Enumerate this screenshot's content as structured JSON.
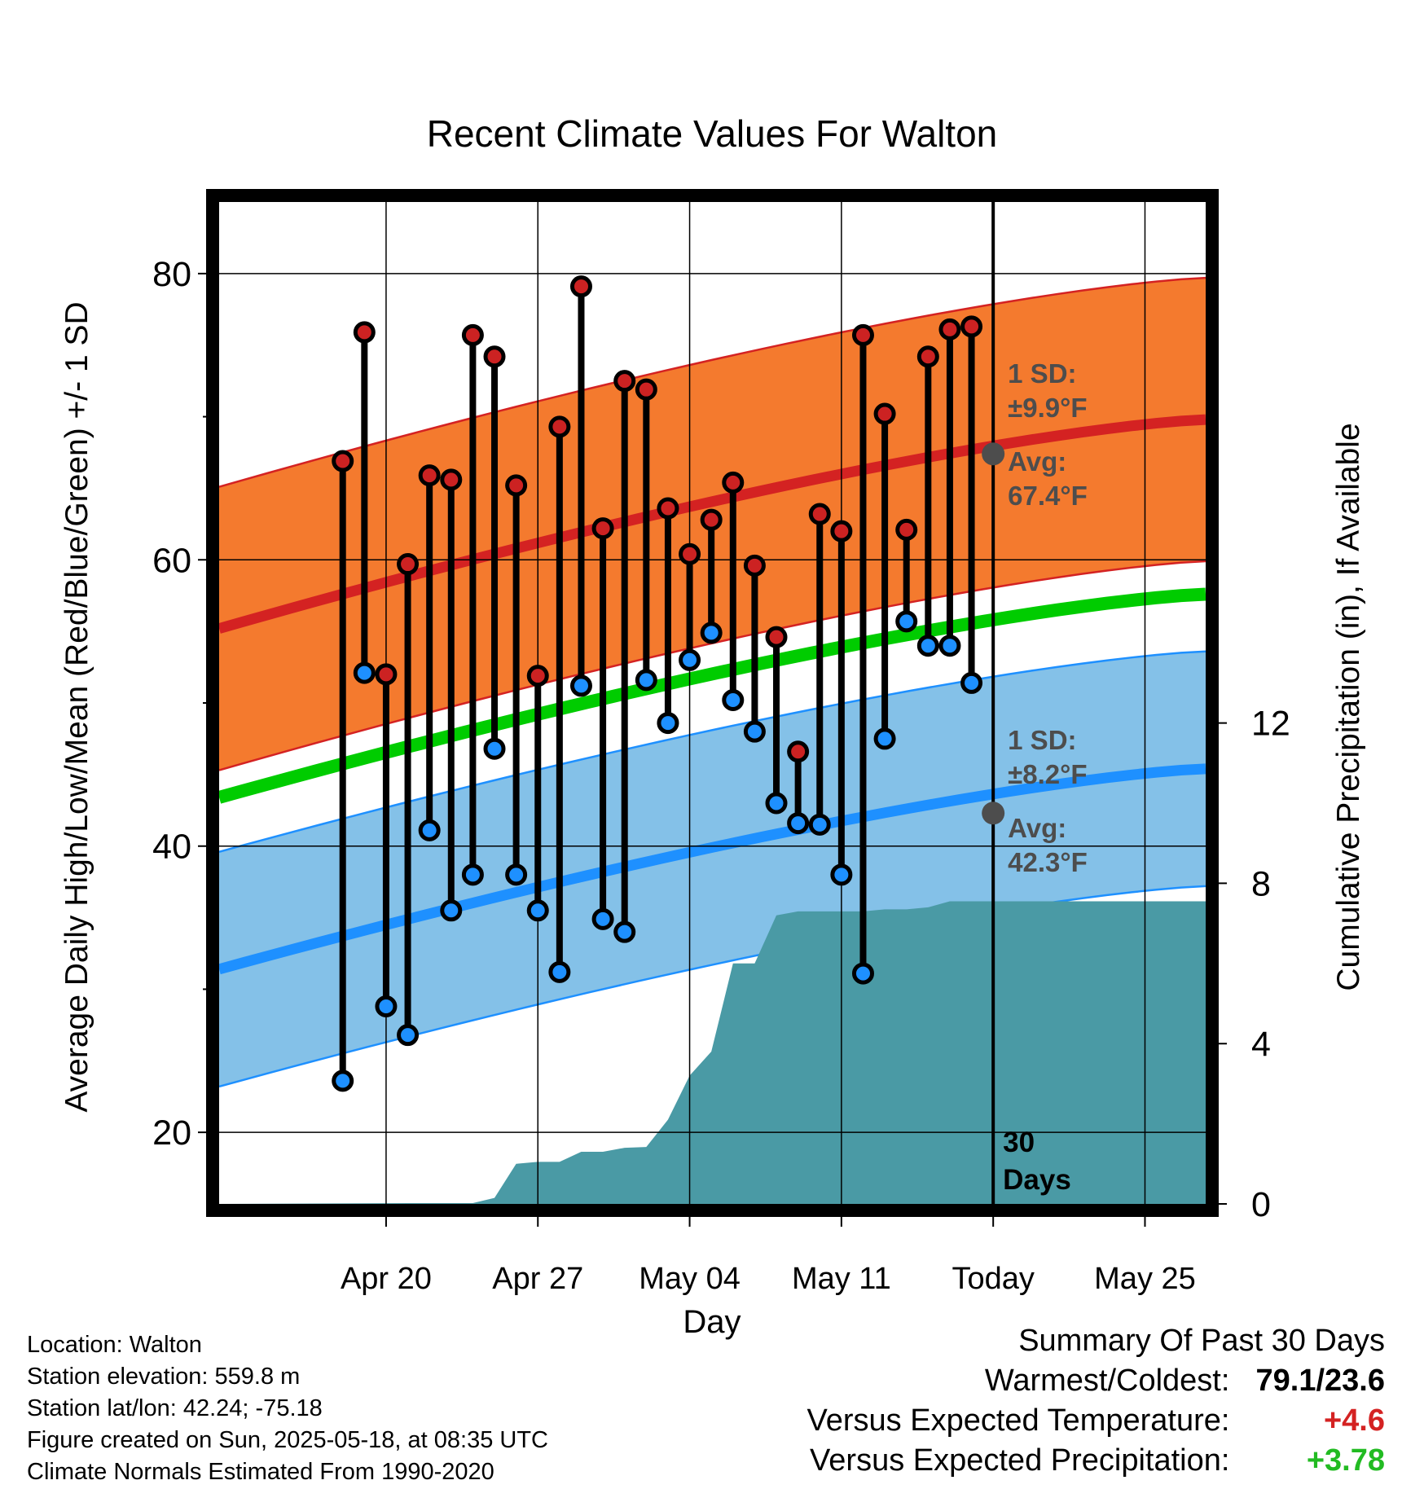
{
  "chart_data": {
    "type": "line",
    "title": "Recent Climate Values For Walton",
    "xlabel": "Day",
    "ylabel_left": "Average Daily High/Low/Mean (Red/Blue/Green) +/- 1 SD",
    "ylabel_right": "Cumulative Precipitation (in), If Available",
    "ylim_left": [
      15,
      85
    ],
    "ylim_right": [
      0,
      25
    ],
    "xlim_days": [
      -35.7,
      9.8
    ],
    "x_ticks": [
      {
        "day": -28,
        "label": "Apr 20"
      },
      {
        "day": -21,
        "label": "Apr 27"
      },
      {
        "day": -14,
        "label": "May 04"
      },
      {
        "day": -7,
        "label": "May 11"
      },
      {
        "day": 0,
        "label": "Today"
      },
      {
        "day": 7,
        "label": "May 25"
      }
    ],
    "y_ticks_left": [
      20,
      40,
      60,
      80
    ],
    "y_minor_left": [
      30,
      50,
      70
    ],
    "y_ticks_right": [
      0,
      4,
      8,
      12
    ],
    "grid": true,
    "today_label": "30\nDays",
    "daily": {
      "days": [
        -30,
        -29,
        -28,
        -27,
        -26,
        -25,
        -24,
        -23,
        -22,
        -21,
        -20,
        -19,
        -18,
        -17,
        -16,
        -15,
        -14,
        -13,
        -12,
        -11,
        -10,
        -9,
        -8,
        -7,
        -6,
        -5,
        -4,
        -3,
        -2,
        -1
      ],
      "highs": [
        66.9,
        75.9,
        52.0,
        59.7,
        65.9,
        65.6,
        75.7,
        74.2,
        65.2,
        51.9,
        69.3,
        79.1,
        62.2,
        72.5,
        71.9,
        63.6,
        60.4,
        62.8,
        65.4,
        59.6,
        54.6,
        46.6,
        63.2,
        62.0,
        75.7,
        70.2,
        62.1,
        74.2,
        76.1,
        76.3
      ],
      "lows": [
        23.6,
        52.1,
        28.8,
        26.8,
        41.1,
        35.5,
        38.0,
        46.8,
        38.0,
        35.5,
        31.2,
        51.2,
        34.9,
        34.0,
        51.6,
        48.6,
        53.0,
        54.9,
        50.2,
        48.0,
        43.0,
        41.6,
        41.5,
        38.0,
        31.1,
        47.5,
        55.7,
        54.0,
        54.0,
        51.4
      ]
    },
    "normals": {
      "high_avg_start": 55.2,
      "high_avg_end": 69.8,
      "high_sd": 9.9,
      "low_avg_start": 31.4,
      "low_avg_end": 45.4,
      "low_sd": 8.2,
      "mean_start": 43.4,
      "mean_end": 57.6
    },
    "today_markers": {
      "high_avg": 67.4,
      "low_avg": 42.3,
      "high_sd_label": "1 SD:",
      "high_sd_value": "±9.9°F",
      "high_avg_label": "Avg:",
      "high_avg_value": "67.4°F",
      "low_sd_label": "1 SD:",
      "low_sd_value": "±8.2°F",
      "low_avg_label": "Avg:",
      "low_avg_value": "42.3°F"
    },
    "precipitation": {
      "days": [
        -35.7,
        -27,
        -24,
        -23,
        -22,
        -21,
        -20,
        -19,
        -18,
        -17,
        -16,
        -15,
        -14,
        -13,
        -12,
        -11,
        -10,
        -9,
        -8,
        -7,
        -6,
        -5,
        -4,
        -3,
        -2,
        -1,
        0,
        9.8
      ],
      "cumulative": [
        0,
        0.02,
        0.02,
        0.15,
        1.0,
        1.05,
        1.05,
        1.3,
        1.3,
        1.4,
        1.42,
        2.1,
        3.2,
        3.8,
        6.0,
        6.0,
        7.2,
        7.3,
        7.3,
        7.3,
        7.3,
        7.35,
        7.35,
        7.4,
        7.55,
        7.55,
        7.55,
        7.55
      ]
    },
    "colors": {
      "high_band": "#f47a2e",
      "high_line": "#d42222",
      "low_band": "#84c1e8",
      "low_line": "#1e90ff",
      "mean_line": "#00cc00",
      "precip": "#4a9aa5",
      "high_dot": "#cc2222",
      "low_dot": "#1e90ff",
      "annotation": "#4d4d4d"
    }
  },
  "info": {
    "location": "Location: Walton",
    "elevation": "Station elevation: 559.8 m",
    "latlon": "Station lat/lon: 42.24; -75.18",
    "created": "Figure created on Sun, 2025-05-18, at 08:35 UTC",
    "normals": "Climate Normals Estimated From 1990-2020"
  },
  "summary": {
    "heading": "Summary Of Past 30 Days",
    "warmest_label": "Warmest/Coldest:",
    "warmest_value": "79.1/23.6",
    "temp_label": "Versus Expected Temperature:",
    "temp_value": "+4.6",
    "temp_color": "#d42222",
    "precip_label": "Versus Expected Precipitation:",
    "precip_value": "+3.78",
    "precip_color": "#22bb22"
  }
}
